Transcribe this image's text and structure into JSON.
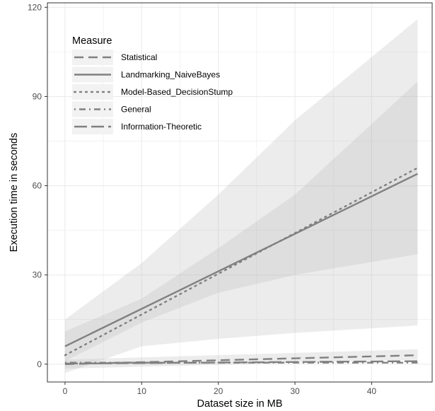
{
  "chart_data": {
    "type": "line",
    "xlabel": "Dataset size in MB",
    "ylabel": "Execution time in seconds",
    "xlim": [
      -2.3,
      47.9
    ],
    "ylim": [
      -6.0,
      121.5
    ],
    "x_ticks": [
      0,
      10,
      20,
      30,
      40
    ],
    "y_ticks": [
      0,
      30,
      60,
      90,
      120
    ],
    "grid": true,
    "legend_title": "Measure",
    "legend_position": "top-left",
    "series": [
      {
        "name": "Statistical",
        "dash": "long-dash",
        "x": [
          0,
          46
        ],
        "y": [
          0.0,
          3.0
        ]
      },
      {
        "name": "Landmarking_NaiveBayes",
        "dash": "solid",
        "x": [
          0,
          46
        ],
        "y": [
          6.0,
          64.0
        ]
      },
      {
        "name": "Model-Based_DecisionStump",
        "dash": "dotted",
        "x": [
          0,
          46
        ],
        "y": [
          3.0,
          66.0
        ]
      },
      {
        "name": "General",
        "dash": "dot-dash",
        "x": [
          0,
          46
        ],
        "y": [
          0.5,
          0.5
        ]
      },
      {
        "name": "Information-Theoretic",
        "dash": "two-dash",
        "x": [
          0,
          46
        ],
        "y": [
          0.2,
          1.0
        ]
      }
    ],
    "confidence_bands": [
      {
        "series": "Model-Based_DecisionStump",
        "x": [
          0,
          10,
          20,
          30,
          46
        ],
        "lower": [
          -3,
          6,
          8.5,
          10.5,
          13
        ],
        "upper": [
          15,
          34,
          57,
          82,
          116
        ]
      },
      {
        "series": "Landmarking_NaiveBayes",
        "x": [
          0,
          10,
          20,
          30,
          46
        ],
        "lower": [
          1,
          14,
          24,
          30,
          37
        ],
        "upper": [
          11,
          22,
          39,
          57,
          95
        ]
      },
      {
        "series": "Statistical",
        "x": [
          0,
          46
        ],
        "lower": [
          -1.5,
          1.5
        ],
        "upper": [
          1.5,
          5
        ]
      }
    ],
    "colors": {
      "line": "#808080",
      "band": "#ebebeb",
      "band_overlap": "#dcdcdc",
      "grid": "#ebebeb",
      "axis": "#333333"
    }
  }
}
